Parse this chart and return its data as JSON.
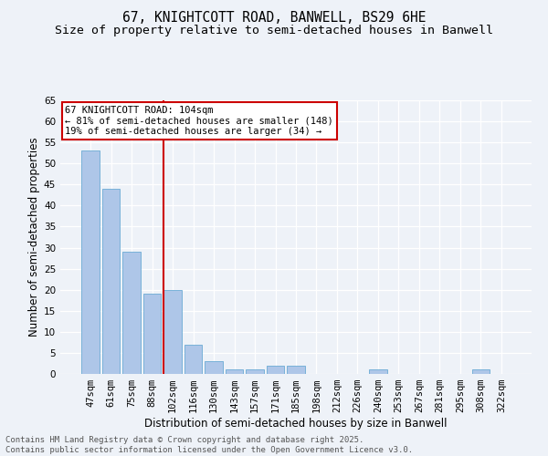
{
  "title_line1": "67, KNIGHTCOTT ROAD, BANWELL, BS29 6HE",
  "title_line2": "Size of property relative to semi-detached houses in Banwell",
  "xlabel": "Distribution of semi-detached houses by size in Banwell",
  "ylabel": "Number of semi-detached properties",
  "categories": [
    "47sqm",
    "61sqm",
    "75sqm",
    "88sqm",
    "102sqm",
    "116sqm",
    "130sqm",
    "143sqm",
    "157sqm",
    "171sqm",
    "185sqm",
    "198sqm",
    "212sqm",
    "226sqm",
    "240sqm",
    "253sqm",
    "267sqm",
    "281sqm",
    "295sqm",
    "308sqm",
    "322sqm"
  ],
  "values": [
    53,
    44,
    29,
    19,
    20,
    7,
    3,
    1,
    1,
    2,
    2,
    0,
    0,
    0,
    1,
    0,
    0,
    0,
    0,
    1,
    0
  ],
  "bar_color": "#aec6e8",
  "bar_edge_color": "#6aaad4",
  "highlight_bar_index": 4,
  "vline_color": "#cc0000",
  "ylim": [
    0,
    65
  ],
  "yticks": [
    0,
    5,
    10,
    15,
    20,
    25,
    30,
    35,
    40,
    45,
    50,
    55,
    60,
    65
  ],
  "annotation_text": "67 KNIGHTCOTT ROAD: 104sqm\n← 81% of semi-detached houses are smaller (148)\n19% of semi-detached houses are larger (34) →",
  "annotation_box_color": "#ffffff",
  "annotation_box_edge": "#cc0000",
  "footer_text": "Contains HM Land Registry data © Crown copyright and database right 2025.\nContains public sector information licensed under the Open Government Licence v3.0.",
  "background_color": "#eef2f8",
  "grid_color": "#ffffff",
  "title_fontsize": 10.5,
  "subtitle_fontsize": 9.5,
  "axis_label_fontsize": 8.5,
  "tick_fontsize": 7.5,
  "annotation_fontsize": 7.5,
  "footer_fontsize": 6.5
}
